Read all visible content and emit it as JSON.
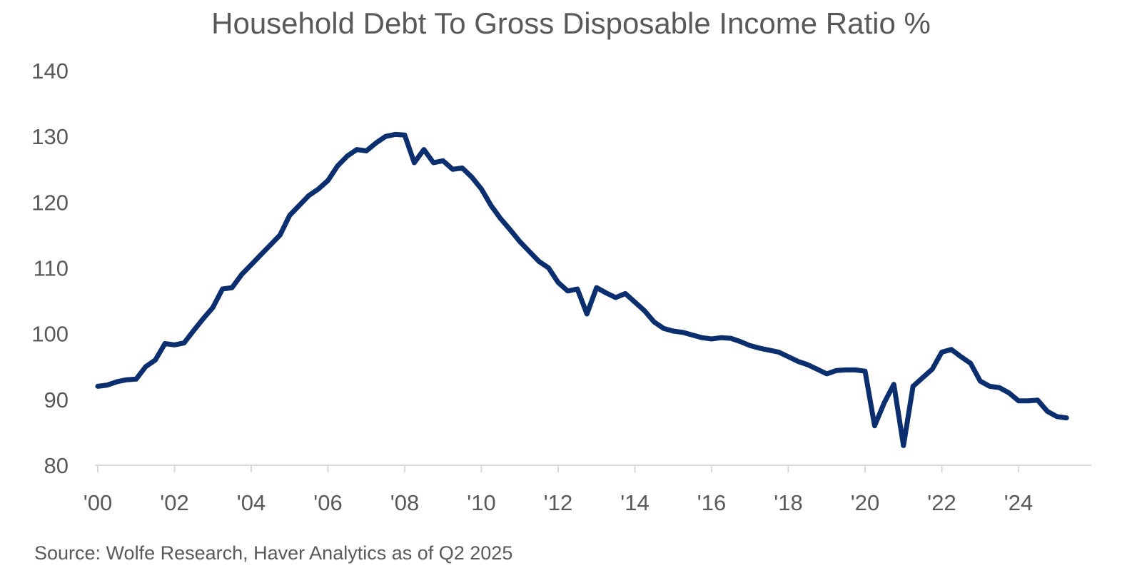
{
  "colors": {
    "series": "#0b2f6e",
    "text": "#595959",
    "axis": "#d9d9d9",
    "background": "#ffffff"
  },
  "chart_data": {
    "type": "line",
    "title": "Household Debt To Gross Disposable Income Ratio %",
    "xlabel": "",
    "ylabel": "",
    "xlim": [
      2000,
      2026
    ],
    "ylim": [
      80,
      140
    ],
    "y_ticks": [
      80,
      90,
      100,
      110,
      120,
      130,
      140
    ],
    "y_tick_labels": [
      "80",
      "90",
      "100",
      "110",
      "120",
      "130",
      "140"
    ],
    "x_ticks": [
      2000,
      2002,
      2004,
      2006,
      2008,
      2010,
      2012,
      2014,
      2016,
      2018,
      2020,
      2022,
      2024
    ],
    "x_tick_labels": [
      "'00",
      "'02",
      "'04",
      "'06",
      "'08",
      "'10",
      "'12",
      "'14",
      "'16",
      "'18",
      "'20",
      "'22",
      "'24"
    ],
    "grid": false,
    "legend": "none",
    "series": [
      {
        "name": "Household Debt To Gross Disposable Income Ratio %",
        "x": [
          2000.0,
          2000.25,
          2000.5,
          2000.75,
          2001.0,
          2001.25,
          2001.5,
          2001.75,
          2002.0,
          2002.25,
          2002.5,
          2002.75,
          2003.0,
          2003.25,
          2003.5,
          2003.75,
          2004.0,
          2004.25,
          2004.5,
          2004.75,
          2005.0,
          2005.25,
          2005.5,
          2005.75,
          2006.0,
          2006.25,
          2006.5,
          2006.75,
          2007.0,
          2007.25,
          2007.5,
          2007.75,
          2008.0,
          2008.25,
          2008.5,
          2008.75,
          2009.0,
          2009.25,
          2009.5,
          2009.75,
          2010.0,
          2010.25,
          2010.5,
          2010.75,
          2011.0,
          2011.25,
          2011.5,
          2011.75,
          2012.0,
          2012.25,
          2012.5,
          2012.75,
          2013.0,
          2013.25,
          2013.5,
          2013.75,
          2014.0,
          2014.25,
          2014.5,
          2014.75,
          2015.0,
          2015.25,
          2015.5,
          2015.75,
          2016.0,
          2016.25,
          2016.5,
          2016.75,
          2017.0,
          2017.25,
          2017.5,
          2017.75,
          2018.0,
          2018.25,
          2018.5,
          2018.75,
          2019.0,
          2019.25,
          2019.5,
          2019.75,
          2020.0,
          2020.25,
          2020.5,
          2020.75,
          2021.0,
          2021.25,
          2021.5,
          2021.75,
          2022.0,
          2022.25,
          2022.5,
          2022.75,
          2023.0,
          2023.25,
          2023.5,
          2023.75,
          2024.0,
          2024.25,
          2024.5,
          2024.75,
          2025.0,
          2025.25
        ],
        "values": [
          92.0,
          92.2,
          92.7,
          93.0,
          93.1,
          95.0,
          96.0,
          98.5,
          98.3,
          98.6,
          100.5,
          102.3,
          104.0,
          106.8,
          107.0,
          109.0,
          110.5,
          112.0,
          113.5,
          115.0,
          118.0,
          119.5,
          121.0,
          122.0,
          123.3,
          125.5,
          127.0,
          128.0,
          127.8,
          129.0,
          130.0,
          130.3,
          130.2,
          126.0,
          128.0,
          126.0,
          126.3,
          125.0,
          125.2,
          123.8,
          122.0,
          119.5,
          117.5,
          115.8,
          114.0,
          112.5,
          111.0,
          110.0,
          107.8,
          106.5,
          106.8,
          103.0,
          107.0,
          106.2,
          105.5,
          106.1,
          104.8,
          103.5,
          101.8,
          100.8,
          100.4,
          100.2,
          99.8,
          99.4,
          99.2,
          99.4,
          99.3,
          98.8,
          98.2,
          97.8,
          97.5,
          97.2,
          96.5,
          95.8,
          95.3,
          94.6,
          93.9,
          94.4,
          94.5,
          94.5,
          94.3,
          86.0,
          89.5,
          92.3,
          83.0,
          92.0,
          93.3,
          94.6,
          97.2,
          97.6,
          96.5,
          95.5,
          92.8,
          92.0,
          91.8,
          91.0,
          89.8,
          89.8,
          89.9,
          88.2,
          87.4,
          87.2
        ]
      }
    ]
  },
  "source": {
    "text": "Source: Wolfe Research, Haver Analytics as of Q2 2025"
  }
}
